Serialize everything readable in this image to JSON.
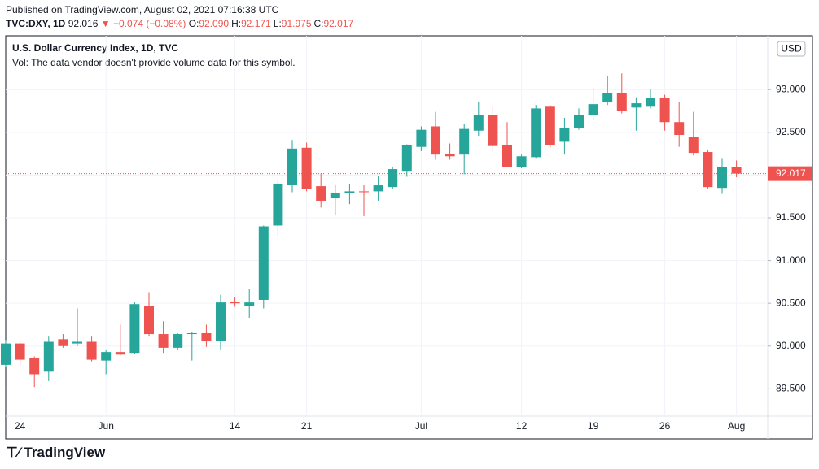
{
  "header": {
    "published": "Published on TradingView.com, August 02, 2021 07:16:38 UTC",
    "symbol": "TVC:DXY, 1D",
    "price": "92.016",
    "change": "▼ −0.074 (−0.08%)",
    "ohlc": [
      {
        "key": "O:",
        "val": "92.090"
      },
      {
        "key": "H:",
        "val": "92.171"
      },
      {
        "key": "L:",
        "val": "91.975"
      },
      {
        "key": "C:",
        "val": "92.017"
      }
    ]
  },
  "footer": {
    "brand": "TradingView"
  },
  "chart_data": {
    "type": "candlestick",
    "title": "U.S. Dollar Currency Index, 1D, TVC",
    "subtitle": "Vol: The data vendor doesn't provide volume data for this symbol.",
    "currency": "USD",
    "categories": [
      null,
      "24",
      null,
      null,
      null,
      null,
      null,
      "Jun",
      null,
      null,
      null,
      null,
      null,
      null,
      null,
      null,
      "14",
      null,
      null,
      null,
      null,
      "21",
      null,
      null,
      null,
      null,
      null,
      null,
      null,
      "Jul",
      null,
      null,
      null,
      null,
      null,
      null,
      "12",
      null,
      null,
      null,
      null,
      "19",
      null,
      null,
      null,
      null,
      "26",
      null,
      null,
      null,
      null,
      "Aug"
    ],
    "open": [
      89.78,
      90.03,
      89.86,
      89.7,
      90.08,
      90.03,
      90.05,
      89.83,
      89.93,
      89.92,
      90.47,
      90.14,
      89.98,
      90.14,
      90.15,
      90.06,
      90.52,
      90.47,
      90.54,
      91.41,
      91.89,
      92.32,
      91.87,
      91.73,
      91.79,
      91.81,
      91.81,
      91.86,
      92.05,
      92.33,
      92.57,
      92.25,
      92.24,
      92.52,
      92.7,
      92.35,
      92.09,
      92.21,
      92.8,
      92.39,
      92.55,
      92.7,
      92.85,
      92.96,
      92.79,
      92.8,
      92.9,
      92.62,
      92.45,
      92.27,
      91.85,
      92.09
    ],
    "high": [
      90.07,
      90.06,
      89.88,
      90.12,
      90.14,
      90.44,
      90.12,
      89.95,
      90.25,
      90.52,
      90.63,
      90.29,
      90.15,
      90.17,
      90.25,
      90.6,
      90.57,
      90.67,
      91.41,
      91.94,
      92.41,
      92.38,
      92.02,
      91.89,
      91.9,
      91.89,
      91.99,
      92.1,
      92.36,
      92.57,
      92.74,
      92.37,
      92.6,
      92.85,
      92.8,
      92.62,
      92.24,
      92.82,
      92.82,
      92.67,
      92.78,
      93.02,
      93.16,
      93.19,
      92.91,
      93.01,
      92.94,
      92.85,
      92.74,
      92.3,
      92.2,
      92.171
    ],
    "low": [
      89.75,
      89.77,
      89.52,
      89.59,
      89.98,
      90.0,
      89.82,
      89.67,
      89.89,
      89.91,
      90.12,
      89.92,
      89.95,
      89.83,
      89.99,
      89.96,
      90.46,
      90.33,
      90.44,
      91.29,
      91.8,
      91.81,
      91.62,
      91.53,
      91.66,
      91.52,
      91.7,
      91.84,
      91.98,
      92.28,
      92.18,
      92.18,
      92.01,
      92.46,
      92.27,
      92.09,
      92.08,
      92.2,
      92.32,
      92.24,
      92.53,
      92.64,
      92.82,
      92.72,
      92.52,
      92.78,
      92.52,
      92.33,
      92.23,
      91.84,
      91.78,
      91.975
    ],
    "close": [
      90.03,
      89.84,
      89.67,
      90.05,
      90.0,
      90.05,
      89.84,
      89.93,
      89.9,
      90.49,
      90.14,
      89.98,
      90.14,
      90.15,
      90.06,
      90.51,
      90.5,
      90.51,
      91.4,
      91.9,
      92.31,
      91.84,
      91.7,
      91.79,
      91.81,
      91.8,
      91.88,
      92.07,
      92.35,
      92.53,
      92.24,
      92.22,
      92.54,
      92.7,
      92.34,
      92.09,
      92.22,
      92.78,
      92.35,
      92.55,
      92.7,
      92.83,
      92.96,
      92.75,
      92.84,
      92.9,
      92.62,
      92.47,
      92.26,
      91.86,
      92.09,
      92.017
    ],
    "up_color": "#26a69a",
    "down_color": "#ef5350",
    "price_line": 92.017,
    "ylim": [
      89.18,
      93.63
    ],
    "yticks": [
      {
        "value": 89.5,
        "label": "89.500"
      },
      {
        "value": 90,
        "label": "90.000"
      },
      {
        "value": 90.5,
        "label": "90.500"
      },
      {
        "value": 91,
        "label": "91.000"
      },
      {
        "value": 91.5,
        "label": "91.500"
      },
      {
        "value": 92,
        "label": "92.000"
      },
      {
        "value": 92.5,
        "label": "92.500"
      },
      {
        "value": 93,
        "label": "93.000"
      }
    ],
    "grid": true
  }
}
